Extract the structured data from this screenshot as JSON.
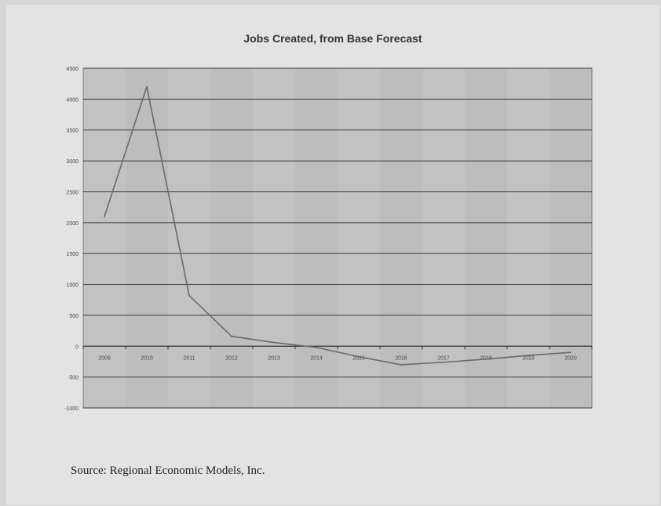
{
  "chart_data": {
    "type": "line",
    "title": "Jobs Created, from Base Forecast",
    "xlabel": "",
    "ylabel": "",
    "categories": [
      "2009",
      "2010",
      "2011",
      "2012",
      "2013",
      "2014",
      "2015",
      "2016",
      "2017",
      "2018",
      "2019",
      "2020"
    ],
    "series": [
      {
        "values": [
          2100,
          4200,
          820,
          160,
          60,
          -20,
          -170,
          -300,
          -260,
          -210,
          -150,
          -100
        ]
      }
    ],
    "ylim": [
      -1000,
      4500
    ],
    "y_ticks": [
      4500,
      4000,
      3500,
      3000,
      2500,
      2000,
      1500,
      1000,
      500,
      0,
      -500,
      -1000
    ],
    "y_tick_labels": [
      "4500",
      "4000",
      "3500",
      "3000",
      "2500",
      "2000",
      "1500",
      "1000",
      "500",
      "0",
      "-500",
      "-1000"
    ],
    "grid": true,
    "legend": "none",
    "colors": {
      "plot_background": "#bdbdbd",
      "gridline": "#3a3a3a",
      "line": "#6a6a6a",
      "page": "#e3e3e3"
    }
  },
  "source_note": "Source: Regional Economic Models, Inc."
}
